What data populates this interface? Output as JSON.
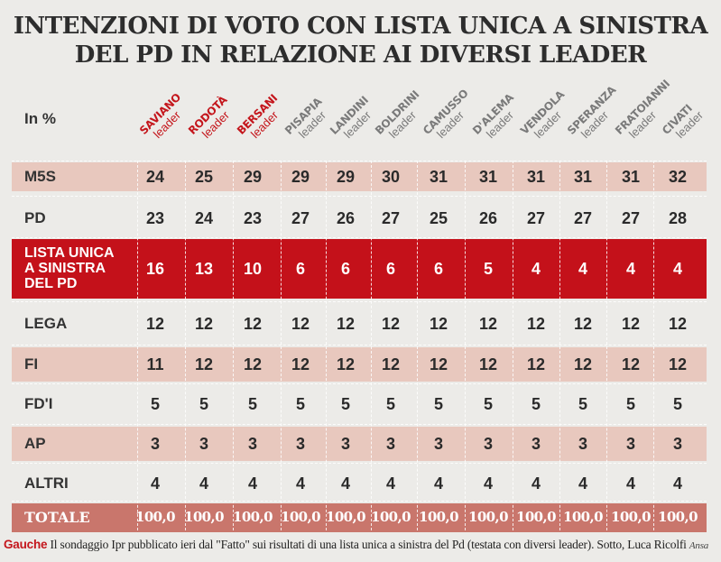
{
  "title_line1": "INTENZIONI DI VOTO CON LISTA UNICA A SINISTRA",
  "title_line2": "DEL PD IN RELAZIONE AI DIVERSI LEADER",
  "unit_label": "In %",
  "leader_word": "leader",
  "colors": {
    "accent_red": "#c4111a",
    "highlight_name": "#c4161c",
    "pink_row": "#e8c8be",
    "total_row": "#c9766c"
  },
  "caption": {
    "tag": "Gauche",
    "text": " Il sondaggio Ipr pubblicato ieri dal \"Fatto\" sui risultati di una lista unica a sinistra del Pd (testata con diversi leader). Sotto, Luca Ricolfi ",
    "credit": "Ansa"
  },
  "chart_data": {
    "type": "table",
    "title": "INTENZIONI DI VOTO CON LISTA UNICA A SINISTRA DEL PD IN RELAZIONE AI DIVERSI LEADER",
    "unit": "In %",
    "columns": [
      {
        "name": "SAVIANO",
        "highlight": true
      },
      {
        "name": "RODOTÀ",
        "highlight": true
      },
      {
        "name": "BERSANI",
        "highlight": true
      },
      {
        "name": "PISAPIA",
        "highlight": false
      },
      {
        "name": "LANDINI",
        "highlight": false
      },
      {
        "name": "BOLDRINI",
        "highlight": false
      },
      {
        "name": "CAMUSSO",
        "highlight": false
      },
      {
        "name": "D'ALEMA",
        "highlight": false
      },
      {
        "name": "VENDOLA",
        "highlight": false
      },
      {
        "name": "SPERANZA",
        "highlight": false
      },
      {
        "name": "FRATOIANNI",
        "highlight": false
      },
      {
        "name": "CIVATI",
        "highlight": false
      }
    ],
    "rows": [
      {
        "label": "M5S",
        "style": "pink",
        "values": [
          "24",
          "25",
          "29",
          "29",
          "29",
          "30",
          "31",
          "31",
          "31",
          "31",
          "31",
          "32"
        ]
      },
      {
        "label": "PD",
        "style": "plain",
        "values": [
          "23",
          "24",
          "23",
          "27",
          "26",
          "27",
          "25",
          "26",
          "27",
          "27",
          "27",
          "28"
        ]
      },
      {
        "label": "LISTA UNICA\nA SINISTRA\nDEL PD",
        "style": "red",
        "values": [
          "16",
          "13",
          "10",
          "6",
          "6",
          "6",
          "6",
          "5",
          "4",
          "4",
          "4",
          "4"
        ]
      },
      {
        "label": "LEGA",
        "style": "plain",
        "values": [
          "12",
          "12",
          "12",
          "12",
          "12",
          "12",
          "12",
          "12",
          "12",
          "12",
          "12",
          "12"
        ]
      },
      {
        "label": "FI",
        "style": "pink",
        "values": [
          "11",
          "12",
          "12",
          "12",
          "12",
          "12",
          "12",
          "12",
          "12",
          "12",
          "12",
          "12"
        ]
      },
      {
        "label": "FD'I",
        "style": "plain",
        "values": [
          "5",
          "5",
          "5",
          "5",
          "5",
          "5",
          "5",
          "5",
          "5",
          "5",
          "5",
          "5"
        ]
      },
      {
        "label": "AP",
        "style": "pink",
        "values": [
          "3",
          "3",
          "3",
          "3",
          "3",
          "3",
          "3",
          "3",
          "3",
          "3",
          "3",
          "3"
        ]
      },
      {
        "label": "ALTRI",
        "style": "plain",
        "values": [
          "4",
          "4",
          "4",
          "4",
          "4",
          "4",
          "4",
          "4",
          "4",
          "4",
          "4",
          "4"
        ]
      },
      {
        "label": "TOTALE",
        "style": "salmon",
        "values": [
          "100,0",
          "100,0",
          "100,0",
          "100,0",
          "100,0",
          "100,0",
          "100,0",
          "100,0",
          "100,0",
          "100,0",
          "100,0",
          "100,0"
        ]
      }
    ]
  }
}
